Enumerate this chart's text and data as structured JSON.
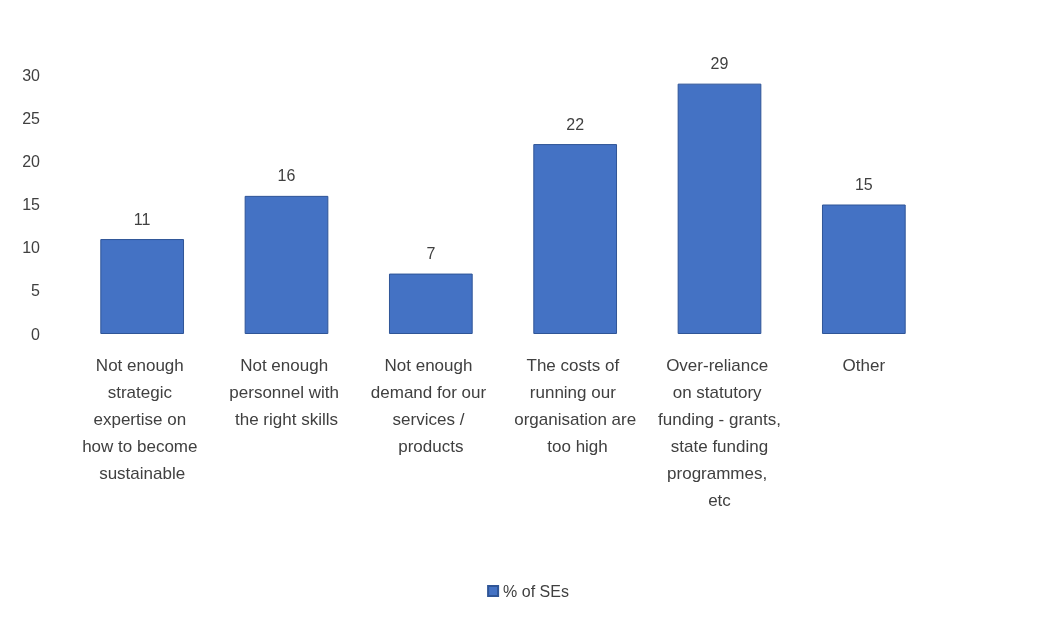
{
  "chart_data": {
    "type": "bar",
    "categories": [
      "Not enough strategic expertise on how to become sustainable",
      "Not enough personnel with the right skills",
      "Not enough demand for our services / products",
      "The costs of running our organisation are too high",
      "Over-reliance on statutory funding - grants, state funding programmes, etc",
      "Other"
    ],
    "series": [
      {
        "name": "% of SEs",
        "color": "#4472c4",
        "values": [
          11,
          16,
          7,
          22,
          29,
          15
        ]
      }
    ],
    "ylim": [
      0,
      30
    ],
    "yticks": [
      0,
      5,
      10,
      15,
      20,
      25,
      30
    ],
    "grid": false,
    "legend": "bottom",
    "data_labels": true
  }
}
